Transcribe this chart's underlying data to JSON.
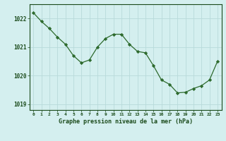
{
  "x": [
    0,
    1,
    2,
    3,
    4,
    5,
    6,
    7,
    8,
    9,
    10,
    11,
    12,
    13,
    14,
    15,
    16,
    17,
    18,
    19,
    20,
    21,
    22,
    23
  ],
  "y": [
    1022.2,
    1021.9,
    1021.65,
    1021.35,
    1021.1,
    1020.7,
    1020.45,
    1020.55,
    1021.0,
    1021.3,
    1021.45,
    1021.45,
    1021.1,
    1020.85,
    1020.8,
    1020.35,
    1019.85,
    1019.7,
    1019.4,
    1019.42,
    1019.55,
    1019.65,
    1019.85,
    1020.5
  ],
  "line_color": "#2d6a2d",
  "marker": "D",
  "marker_size": 2.2,
  "background_color": "#d4efef",
  "grid_color": "#b8dada",
  "xlabel": "Graphe pression niveau de la mer (hPa)",
  "xlabel_color": "#1a4a1a",
  "tick_color": "#1a4a1a",
  "ylim": [
    1018.8,
    1022.5
  ],
  "xlim": [
    -0.5,
    23.5
  ],
  "yticks": [
    1019,
    1020,
    1021,
    1022
  ],
  "xticks": [
    0,
    1,
    2,
    3,
    4,
    5,
    6,
    7,
    8,
    9,
    10,
    11,
    12,
    13,
    14,
    15,
    16,
    17,
    18,
    19,
    20,
    21,
    22,
    23
  ],
  "xtick_labels": [
    "0",
    "1",
    "2",
    "3",
    "4",
    "5",
    "6",
    "7",
    "8",
    "9",
    "10",
    "11",
    "12",
    "13",
    "14",
    "15",
    "16",
    "17",
    "18",
    "19",
    "20",
    "21",
    "22",
    "23"
  ]
}
